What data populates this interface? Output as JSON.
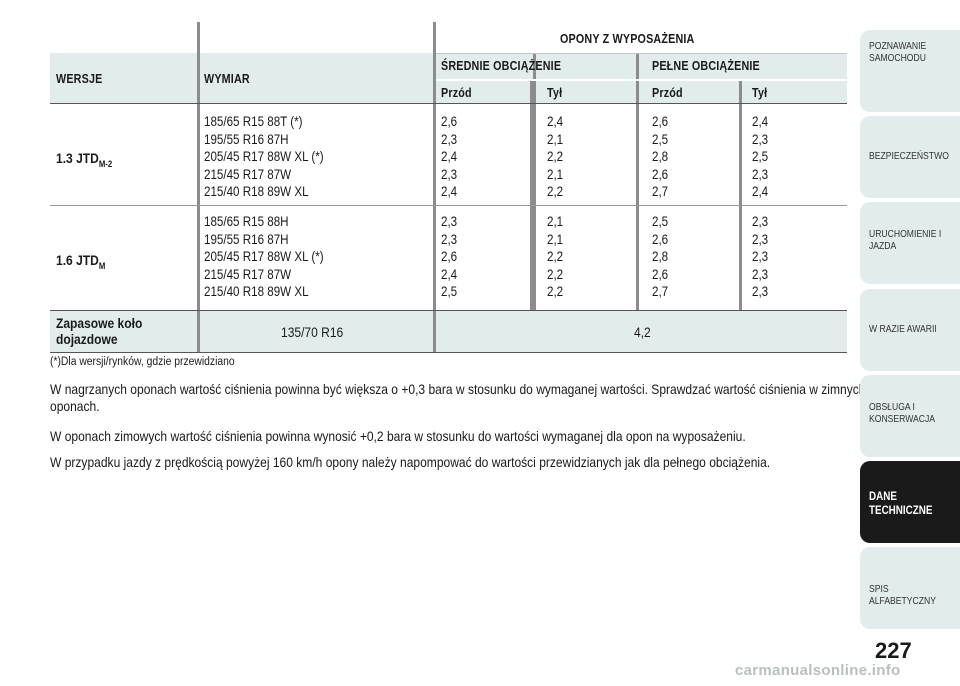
{
  "table": {
    "title": "OPONY Z WYPOSAŻENIA",
    "col_versions": "WERSJE",
    "col_size": "WYMIAR",
    "group_mid": "ŚREDNIE OBCIĄŻENIE",
    "group_full": "PEŁNE OBCIĄŻENIE",
    "front": "Przód",
    "rear": "Tył",
    "rows": [
      {
        "version": "1.3 JTD",
        "version_sub": "M-2",
        "sizes": "185/65 R15 88T (*)\n195/55 R16 87H\n205/45 R17 88W XL (*)\n215/45 R17 87W\n215/40 R18 89W XL",
        "mid_front": "2,6\n2,3\n2,4\n2,3\n2,4",
        "mid_rear": "2,4\n2,1\n2,2\n2,1\n2,2",
        "full_front": "2,6\n2,5\n2,8\n2,6\n2,7",
        "full_rear": "2,4\n2,3\n2,5\n2,3\n2,4"
      },
      {
        "version": "1.6 JTD",
        "version_sub": "M",
        "sizes": "185/65 R15 88H\n195/55 R16 87H\n205/45 R17 88W XL (*)\n215/45 R17 87W\n215/40 R18 89W XL",
        "mid_front": "2,3\n2,3\n2,6\n2,4\n2,5",
        "mid_rear": "2,1\n2,1\n2,2\n2,2\n2,2",
        "full_front": "2,5\n2,6\n2,8\n2,6\n2,7",
        "full_rear": "2,3\n2,3\n2,3\n2,3\n2,3"
      }
    ],
    "spare_label": "Zapasowe koło\ndojazdowe",
    "spare_size": "135/70 R16",
    "spare_value": "4,2"
  },
  "footnote": "(*)Dla wersji/rynków, gdzie przewidziano",
  "paragraphs": [
    "W nagrzanych oponach wartość ciśnienia powinna być większa o +0,3 bara w stosunku do wymaganej wartości. Sprawdzać wartość ciśnienia w zimnych oponach.",
    "W oponach zimowych wartość ciśnienia powinna wynosić +0,2 bara w stosunku do wartości wymaganej dla opon na wyposażeniu.",
    "W przypadku jazdy z prędkością powyżej 160 km/h opony należy napompować do wartości przewidzianych jak dla pełnego obciążenia."
  ],
  "tabs": [
    "POZNAWANIE\nSAMOCHODU",
    "BEZPIECZEŃSTWO",
    "URUCHOMIENIE I\nJAZDA",
    "W RAZIE AWARII",
    "OBSŁUGA I\nKONSERWACJA",
    "DANE\nTECHNICZNE",
    "SPIS ALFABETYCZNY"
  ],
  "active_tab": "DANE\nTECHNICZNE",
  "page_number": "227",
  "watermark": "carmanualsonline.info"
}
